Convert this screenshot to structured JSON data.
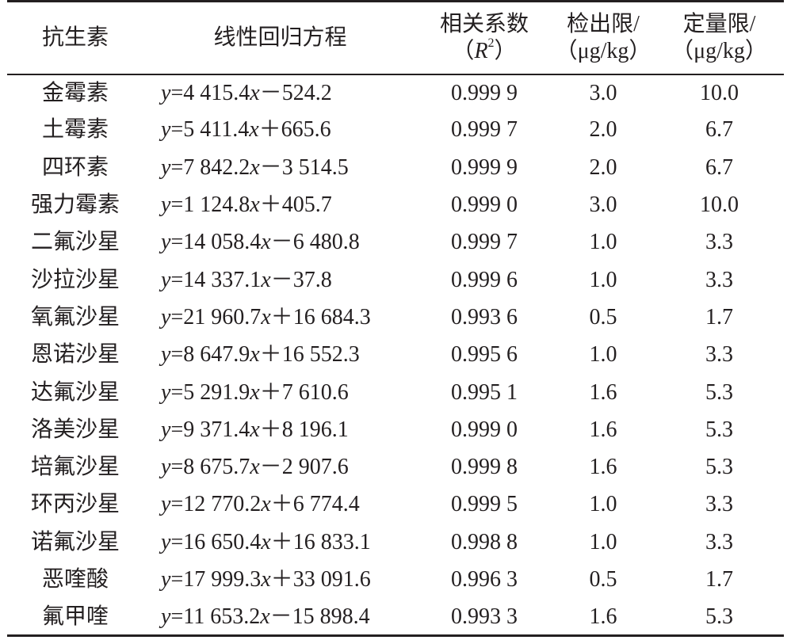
{
  "table": {
    "headers": {
      "name": "抗生素",
      "equation": "线性回归方程",
      "r2_line1": "相关系数",
      "r2_line2_open": "（",
      "r2_symbol": "R",
      "r2_exp": "2",
      "r2_line2_close": "）",
      "lod_line1": "检出限/",
      "lod_line2": "（μg/kg）",
      "loq_line1": "定量限/",
      "loq_line2": "（μg/kg）"
    },
    "rows": [
      {
        "name": "金霉素",
        "slope": "4 415.4",
        "sign": "－",
        "intercept": "524.2",
        "r2": "0.999 9",
        "lod": "3.0",
        "loq": "10.0"
      },
      {
        "name": "土霉素",
        "slope": "5 411.4",
        "sign": "＋",
        "intercept": "665.6",
        "r2": "0.999 7",
        "lod": "2.0",
        "loq": "6.7"
      },
      {
        "name": "四环素",
        "slope": "7 842.2",
        "sign": "－",
        "intercept": "3 514.5",
        "r2": "0.999 9",
        "lod": "2.0",
        "loq": "6.7"
      },
      {
        "name": "强力霉素",
        "slope": "1 124.8",
        "sign": "＋",
        "intercept": "405.7",
        "r2": "0.999 0",
        "lod": "3.0",
        "loq": "10.0"
      },
      {
        "name": "二氟沙星",
        "slope": "14 058.4",
        "sign": "－",
        "intercept": "6 480.8",
        "r2": "0.999 7",
        "lod": "1.0",
        "loq": "3.3"
      },
      {
        "name": "沙拉沙星",
        "slope": "14 337.1",
        "sign": "－",
        "intercept": "37.8",
        "r2": "0.999 6",
        "lod": "1.0",
        "loq": "3.3"
      },
      {
        "name": "氧氟沙星",
        "slope": "21 960.7",
        "sign": "＋",
        "intercept": "16 684.3",
        "r2": "0.993 6",
        "lod": "0.5",
        "loq": "1.7"
      },
      {
        "name": "恩诺沙星",
        "slope": "8 647.9",
        "sign": "＋",
        "intercept": "16 552.3",
        "r2": "0.995 6",
        "lod": "1.0",
        "loq": "3.3"
      },
      {
        "name": "达氟沙星",
        "slope": "5 291.9",
        "sign": "＋",
        "intercept": "7 610.6",
        "r2": "0.995 1",
        "lod": "1.6",
        "loq": "5.3"
      },
      {
        "name": "洛美沙星",
        "slope": "9 371.4",
        "sign": "＋",
        "intercept": "8 196.1",
        "r2": "0.999 0",
        "lod": "1.6",
        "loq": "5.3"
      },
      {
        "name": "培氟沙星",
        "slope": "8 675.7",
        "sign": "－",
        "intercept": "2 907.6",
        "r2": "0.999 8",
        "lod": "1.6",
        "loq": "5.3"
      },
      {
        "name": "环丙沙星",
        "slope": "12 770.2",
        "sign": "＋",
        "intercept": "6 774.4",
        "r2": "0.999 5",
        "lod": "1.0",
        "loq": "3.3"
      },
      {
        "name": "诺氟沙星",
        "slope": "16 650.4",
        "sign": "＋",
        "intercept": "16 833.1",
        "r2": "0.998 8",
        "lod": "1.0",
        "loq": "3.3"
      },
      {
        "name": "恶喹酸",
        "slope": "17 999.3",
        "sign": "＋",
        "intercept": "33 091.6",
        "r2": "0.996 3",
        "lod": "0.5",
        "loq": "1.7"
      },
      {
        "name": "氟甲喹",
        "slope": "11 653.2",
        "sign": "－",
        "intercept": "15 898.4",
        "r2": "0.993 3",
        "lod": "1.6",
        "loq": "5.3"
      }
    ],
    "eq_y": "y",
    "eq_eq": "=",
    "eq_x": "x"
  }
}
